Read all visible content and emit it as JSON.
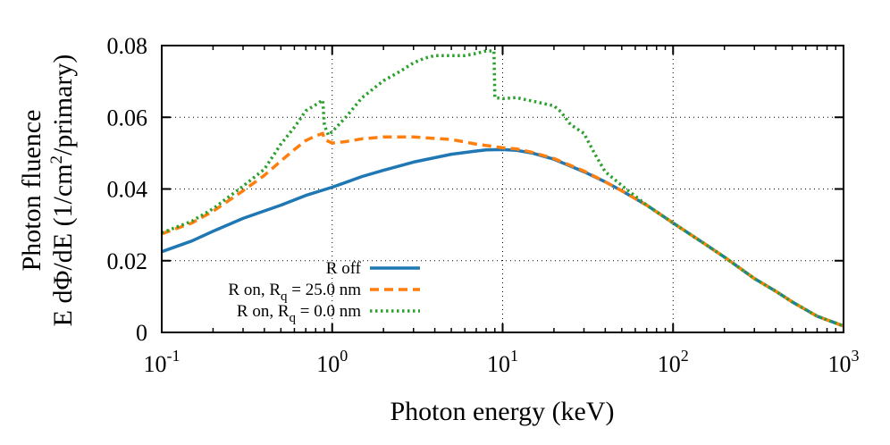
{
  "chart_data": {
    "type": "line",
    "title": "",
    "xlabel": "Photon energy (keV)",
    "ylabel_line1": "Photon fluence",
    "ylabel_line2_prefix": "E dΦ/dE (1/cm",
    "ylabel_line2_sup": "2",
    "ylabel_line2_suffix": "/primary)",
    "xscale": "log",
    "xlim": [
      0.1,
      1000
    ],
    "ylim": [
      0,
      0.08
    ],
    "grid": true,
    "legend_position": "bottom-left",
    "x_ticks": [
      {
        "value": 0.1,
        "base": "10",
        "exp": "-1"
      },
      {
        "value": 1,
        "base": "10",
        "exp": "0"
      },
      {
        "value": 10,
        "base": "10",
        "exp": "1"
      },
      {
        "value": 100,
        "base": "10",
        "exp": "2"
      },
      {
        "value": 1000,
        "base": "10",
        "exp": "3"
      }
    ],
    "y_ticks": [
      {
        "value": 0,
        "label": "0"
      },
      {
        "value": 0.02,
        "label": "0.02"
      },
      {
        "value": 0.04,
        "label": "0.04"
      },
      {
        "value": 0.06,
        "label": "0.06"
      },
      {
        "value": 0.08,
        "label": "0.08"
      }
    ],
    "series": [
      {
        "legend_prefix": "R off",
        "legend_sub": "",
        "legend_suffix": "",
        "color": "#1f77b4",
        "style": "solid",
        "points": [
          [
            0.1,
            0.0225
          ],
          [
            0.15,
            0.0255
          ],
          [
            0.2,
            0.0282
          ],
          [
            0.3,
            0.0318
          ],
          [
            0.5,
            0.0355
          ],
          [
            0.7,
            0.0382
          ],
          [
            1,
            0.0405
          ],
          [
            1.5,
            0.0435
          ],
          [
            2,
            0.0452
          ],
          [
            3,
            0.0475
          ],
          [
            5,
            0.0497
          ],
          [
            7,
            0.0506
          ],
          [
            8,
            0.0509
          ],
          [
            10,
            0.051
          ],
          [
            12,
            0.0508
          ],
          [
            15,
            0.05
          ],
          [
            20,
            0.0483
          ],
          [
            30,
            0.0448
          ],
          [
            40,
            0.042
          ],
          [
            50,
            0.0395
          ],
          [
            70,
            0.0355
          ],
          [
            100,
            0.0305
          ],
          [
            150,
            0.025
          ],
          [
            200,
            0.021
          ],
          [
            300,
            0.015
          ],
          [
            400,
            0.0115
          ],
          [
            500,
            0.0085
          ],
          [
            700,
            0.0045
          ],
          [
            1000,
            0.0018
          ]
        ]
      },
      {
        "legend_prefix": "R on, R",
        "legend_sub": "q",
        "legend_suffix": " = 25.0 nm",
        "color": "#ff7f0e",
        "style": "dashed",
        "points": [
          [
            0.1,
            0.0275
          ],
          [
            0.15,
            0.0305
          ],
          [
            0.2,
            0.0338
          ],
          [
            0.3,
            0.0395
          ],
          [
            0.4,
            0.0438
          ],
          [
            0.5,
            0.0478
          ],
          [
            0.6,
            0.051
          ],
          [
            0.7,
            0.0535
          ],
          [
            0.8,
            0.0548
          ],
          [
            0.88,
            0.0555
          ],
          [
            0.9,
            0.0538
          ],
          [
            1,
            0.0528
          ],
          [
            1.2,
            0.0532
          ],
          [
            1.5,
            0.054
          ],
          [
            2,
            0.0545
          ],
          [
            3,
            0.0545
          ],
          [
            5,
            0.0538
          ],
          [
            7,
            0.0525
          ],
          [
            10,
            0.0515
          ],
          [
            12,
            0.0512
          ],
          [
            15,
            0.0502
          ],
          [
            20,
            0.0485
          ],
          [
            30,
            0.045
          ],
          [
            40,
            0.042
          ],
          [
            50,
            0.0395
          ],
          [
            70,
            0.0355
          ],
          [
            100,
            0.0305
          ],
          [
            150,
            0.025
          ],
          [
            200,
            0.021
          ],
          [
            300,
            0.015
          ],
          [
            400,
            0.0115
          ],
          [
            500,
            0.0085
          ],
          [
            700,
            0.0045
          ],
          [
            1000,
            0.0018
          ]
        ]
      },
      {
        "legend_prefix": "R on, R",
        "legend_sub": "q",
        "legend_suffix": " = 0.0 nm",
        "color": "#2ca02c",
        "style": "dotted",
        "points": [
          [
            0.1,
            0.0278
          ],
          [
            0.15,
            0.031
          ],
          [
            0.2,
            0.0345
          ],
          [
            0.3,
            0.0408
          ],
          [
            0.4,
            0.0455
          ],
          [
            0.5,
            0.0525
          ],
          [
            0.6,
            0.0572
          ],
          [
            0.7,
            0.0618
          ],
          [
            0.8,
            0.0635
          ],
          [
            0.88,
            0.0648
          ],
          [
            0.9,
            0.0578
          ],
          [
            0.95,
            0.055
          ],
          [
            1,
            0.056
          ],
          [
            1.2,
            0.06
          ],
          [
            1.5,
            0.0655
          ],
          [
            2,
            0.0702
          ],
          [
            2.5,
            0.0728
          ],
          [
            3,
            0.0752
          ],
          [
            3.5,
            0.0765
          ],
          [
            4,
            0.0772
          ],
          [
            5,
            0.0772
          ],
          [
            6,
            0.0772
          ],
          [
            7,
            0.0778
          ],
          [
            8,
            0.0785
          ],
          [
            8.9,
            0.0785
          ],
          [
            9,
            0.0655
          ],
          [
            10,
            0.0652
          ],
          [
            12,
            0.0655
          ],
          [
            15,
            0.0645
          ],
          [
            20,
            0.0632
          ],
          [
            22,
            0.0615
          ],
          [
            25,
            0.058
          ],
          [
            30,
            0.0555
          ],
          [
            35,
            0.0495
          ],
          [
            40,
            0.0448
          ],
          [
            50,
            0.041
          ],
          [
            70,
            0.0355
          ],
          [
            100,
            0.0305
          ],
          [
            150,
            0.025
          ],
          [
            200,
            0.021
          ],
          [
            300,
            0.015
          ],
          [
            400,
            0.0115
          ],
          [
            500,
            0.0085
          ],
          [
            700,
            0.0045
          ],
          [
            1000,
            0.0018
          ]
        ]
      }
    ]
  }
}
